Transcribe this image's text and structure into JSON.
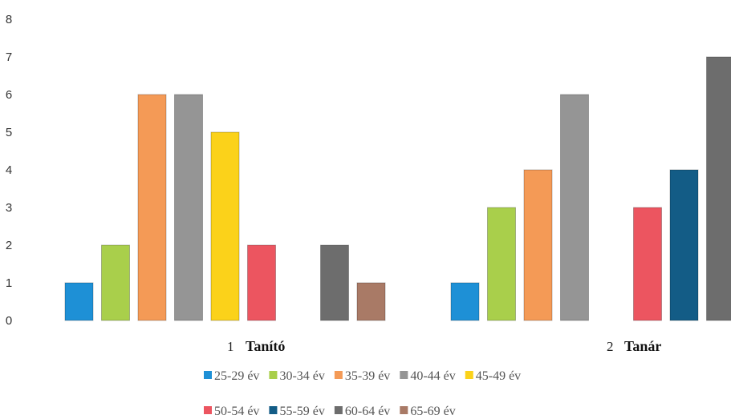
{
  "chart_data": {
    "type": "bar",
    "title": "",
    "xlabel": "",
    "ylabel": "",
    "ylim": [
      0,
      8
    ],
    "yticks": [
      "0",
      "1",
      "2",
      "3",
      "4",
      "5",
      "6",
      "7",
      "8"
    ],
    "grid": false,
    "legend_position": "bottom",
    "categories": [
      {
        "number": "1",
        "name": "Tanító"
      },
      {
        "number": "2",
        "name": "Tanár"
      }
    ],
    "series": [
      {
        "name": "25-29 év",
        "color": "#1e90d6",
        "values": [
          1,
          1
        ]
      },
      {
        "name": "30-34 év",
        "color": "#a9cf4b",
        "values": [
          2,
          3
        ]
      },
      {
        "name": "35-39 év",
        "color": "#f49a56",
        "values": [
          6,
          4
        ]
      },
      {
        "name": "40-44 év",
        "color": "#959595",
        "values": [
          6,
          6
        ]
      },
      {
        "name": "45-49 év",
        "color": "#fbd21a",
        "values": [
          5,
          0
        ]
      },
      {
        "name": "50-54 év",
        "color": "#ec5560",
        "values": [
          2,
          3
        ]
      },
      {
        "name": "55-59 év",
        "color": "#135c86",
        "values": [
          0,
          4
        ]
      },
      {
        "name": "60-64 év",
        "color": "#6d6d6d",
        "values": [
          2,
          7
        ]
      },
      {
        "name": "65-69 év",
        "color": "#a97a66",
        "values": [
          1,
          0
        ]
      }
    ]
  }
}
